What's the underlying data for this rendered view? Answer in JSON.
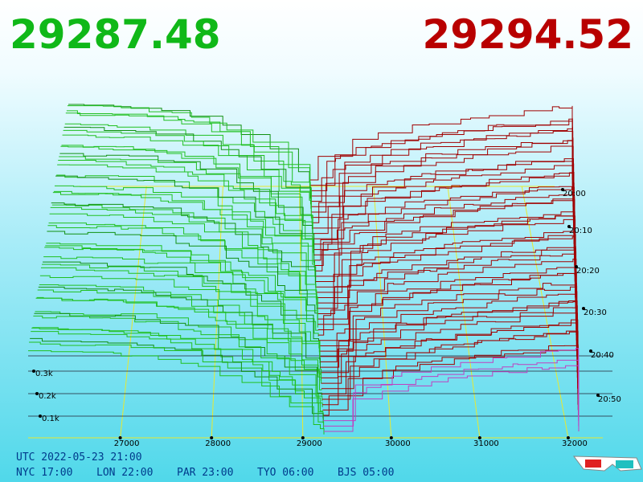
{
  "header": {
    "bid": "29287.48",
    "ask": "29294.52"
  },
  "axis": {
    "price_labels": [
      "27000",
      "28000",
      "29000",
      "30000",
      "31000",
      "32000"
    ],
    "time_labels": [
      "20:00",
      "20:10",
      "20:20",
      "20:30",
      "20:40",
      "20:50"
    ],
    "depth_labels": [
      "0.3k",
      "0.2k",
      "0.1k"
    ]
  },
  "footer": {
    "utc": "UTC 2022-05-23 21:00",
    "cities": [
      "NYC 17:00",
      "LON 22:00",
      "PAR 23:00",
      "TYO 06:00",
      "BJS 05:00"
    ]
  }
}
